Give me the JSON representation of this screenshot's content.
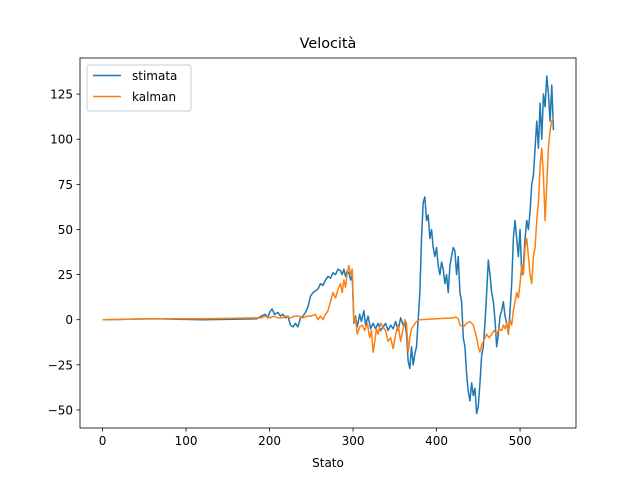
{
  "chart_data": {
    "type": "line",
    "title": "Velocità",
    "xlabel": "Stato",
    "ylabel": "",
    "xlim": [
      -27,
      567
    ],
    "ylim": [
      -60,
      145
    ],
    "xticks": [
      0,
      100,
      200,
      300,
      400,
      500
    ],
    "xtick_labels": [
      "0",
      "100",
      "200",
      "300",
      "400",
      "500"
    ],
    "yticks": [
      -50,
      -25,
      0,
      25,
      50,
      75,
      100,
      125
    ],
    "ytick_labels": [
      "−50",
      "−25",
      "0",
      "25",
      "50",
      "75",
      "100",
      "125"
    ],
    "grid": false,
    "legend_position": "top-left",
    "series": [
      {
        "name": "stimata",
        "color": "#1f77b4",
        "points": [
          [
            0,
            0
          ],
          [
            60,
            0.5
          ],
          [
            120,
            0
          ],
          [
            185,
            0.5
          ],
          [
            190,
            2
          ],
          [
            195,
            3
          ],
          [
            198,
            1
          ],
          [
            200,
            4
          ],
          [
            203,
            6
          ],
          [
            206,
            3
          ],
          [
            210,
            4
          ],
          [
            213,
            2
          ],
          [
            216,
            3
          ],
          [
            219,
            1
          ],
          [
            222,
            2
          ],
          [
            225,
            -3
          ],
          [
            228,
            -4
          ],
          [
            231,
            -2
          ],
          [
            234,
            -4
          ],
          [
            237,
            1
          ],
          [
            240,
            2
          ],
          [
            243,
            4
          ],
          [
            246,
            7
          ],
          [
            249,
            13
          ],
          [
            252,
            15
          ],
          [
            255,
            16
          ],
          [
            258,
            17
          ],
          [
            261,
            20
          ],
          [
            264,
            19
          ],
          [
            267,
            22
          ],
          [
            270,
            24
          ],
          [
            273,
            23
          ],
          [
            276,
            26
          ],
          [
            279,
            25
          ],
          [
            282,
            28
          ],
          [
            285,
            27
          ],
          [
            287,
            25
          ],
          [
            289,
            28
          ],
          [
            291,
            24
          ],
          [
            293,
            27
          ],
          [
            295,
            26
          ],
          [
            297,
            22
          ],
          [
            299,
            25
          ],
          [
            301,
            -2
          ],
          [
            303,
            2
          ],
          [
            305,
            -4
          ],
          [
            308,
            3
          ],
          [
            310,
            -1
          ],
          [
            313,
            5
          ],
          [
            315,
            -3
          ],
          [
            318,
            2
          ],
          [
            321,
            -5
          ],
          [
            324,
            -2
          ],
          [
            327,
            -5
          ],
          [
            330,
            -2
          ],
          [
            333,
            -6
          ],
          [
            336,
            -4
          ],
          [
            339,
            -2
          ],
          [
            342,
            -6
          ],
          [
            345,
            -3
          ],
          [
            348,
            -5
          ],
          [
            351,
            -1
          ],
          [
            354,
            -6
          ],
          [
            357,
            1
          ],
          [
            360,
            -3
          ],
          [
            362,
            -1
          ],
          [
            364,
            -8
          ],
          [
            366,
            -23
          ],
          [
            368,
            -27
          ],
          [
            370,
            -15
          ],
          [
            372,
            -25
          ],
          [
            374,
            -19
          ],
          [
            376,
            -15
          ],
          [
            378,
            0
          ],
          [
            380,
            15
          ],
          [
            382,
            45
          ],
          [
            384,
            65
          ],
          [
            386,
            68
          ],
          [
            388,
            55
          ],
          [
            390,
            58
          ],
          [
            392,
            45
          ],
          [
            394,
            50
          ],
          [
            396,
            40
          ],
          [
            398,
            35
          ],
          [
            400,
            40
          ],
          [
            402,
            30
          ],
          [
            404,
            25
          ],
          [
            406,
            32
          ],
          [
            408,
            28
          ],
          [
            410,
            20
          ],
          [
            412,
            25
          ],
          [
            414,
            15
          ],
          [
            416,
            30
          ],
          [
            418,
            35
          ],
          [
            420,
            40
          ],
          [
            422,
            38
          ],
          [
            424,
            25
          ],
          [
            426,
            35
          ],
          [
            428,
            15
          ],
          [
            430,
            10
          ],
          [
            432,
            -10
          ],
          [
            434,
            -15
          ],
          [
            436,
            -30
          ],
          [
            438,
            -40
          ],
          [
            440,
            -45
          ],
          [
            442,
            -35
          ],
          [
            444,
            -42
          ],
          [
            446,
            -38
          ],
          [
            448,
            -52
          ],
          [
            450,
            -48
          ],
          [
            452,
            -35
          ],
          [
            454,
            -20
          ],
          [
            456,
            -15
          ],
          [
            458,
            -2
          ],
          [
            460,
            15
          ],
          [
            462,
            33
          ],
          [
            464,
            25
          ],
          [
            466,
            15
          ],
          [
            468,
            10
          ],
          [
            470,
            0
          ],
          [
            472,
            -15
          ],
          [
            474,
            -8
          ],
          [
            476,
            2
          ],
          [
            478,
            5
          ],
          [
            480,
            10
          ],
          [
            482,
            2
          ],
          [
            484,
            -2
          ],
          [
            486,
            -8
          ],
          [
            488,
            5
          ],
          [
            490,
            20
          ],
          [
            492,
            45
          ],
          [
            494,
            55
          ],
          [
            496,
            45
          ],
          [
            498,
            35
          ],
          [
            500,
            50
          ],
          [
            502,
            25
          ],
          [
            504,
            30
          ],
          [
            506,
            45
          ],
          [
            508,
            55
          ],
          [
            510,
            50
          ],
          [
            512,
            60
          ],
          [
            514,
            75
          ],
          [
            516,
            80
          ],
          [
            518,
            95
          ],
          [
            520,
            110
          ],
          [
            522,
            95
          ],
          [
            524,
            120
          ],
          [
            526,
            100
          ],
          [
            528,
            125
          ],
          [
            530,
            118
          ],
          [
            532,
            135
          ],
          [
            534,
            125
          ],
          [
            536,
            110
          ],
          [
            538,
            130
          ],
          [
            540,
            105
          ]
        ]
      },
      {
        "name": "kalman",
        "color": "#ff7f0e",
        "points": [
          [
            0,
            0
          ],
          [
            60,
            0.5
          ],
          [
            120,
            0.5
          ],
          [
            185,
            1
          ],
          [
            190,
            1
          ],
          [
            195,
            2
          ],
          [
            200,
            1
          ],
          [
            205,
            2
          ],
          [
            210,
            1
          ],
          [
            215,
            1
          ],
          [
            220,
            2
          ],
          [
            225,
            1
          ],
          [
            230,
            2
          ],
          [
            235,
            2
          ],
          [
            240,
            1
          ],
          [
            245,
            2
          ],
          [
            250,
            2
          ],
          [
            255,
            3
          ],
          [
            258,
            0
          ],
          [
            261,
            2
          ],
          [
            264,
            0
          ],
          [
            267,
            3
          ],
          [
            270,
            5
          ],
          [
            273,
            10
          ],
          [
            276,
            15
          ],
          [
            279,
            12
          ],
          [
            282,
            17
          ],
          [
            285,
            20
          ],
          [
            287,
            15
          ],
          [
            289,
            22
          ],
          [
            291,
            18
          ],
          [
            293,
            26
          ],
          [
            295,
            30
          ],
          [
            297,
            25
          ],
          [
            299,
            28
          ],
          [
            301,
            -1
          ],
          [
            303,
            1
          ],
          [
            305,
            -8
          ],
          [
            308,
            -4
          ],
          [
            311,
            -3
          ],
          [
            314,
            -6
          ],
          [
            317,
            -2
          ],
          [
            320,
            -10
          ],
          [
            322,
            -6
          ],
          [
            324,
            -18
          ],
          [
            326,
            -12
          ],
          [
            328,
            -5
          ],
          [
            330,
            -8
          ],
          [
            333,
            -2
          ],
          [
            336,
            -4
          ],
          [
            339,
            -6
          ],
          [
            342,
            -12
          ],
          [
            345,
            -10
          ],
          [
            348,
            -16
          ],
          [
            351,
            -8
          ],
          [
            354,
            -3
          ],
          [
            357,
            -12
          ],
          [
            360,
            -5
          ],
          [
            362,
            0
          ],
          [
            364,
            -2
          ],
          [
            366,
            -18
          ],
          [
            368,
            -10
          ],
          [
            370,
            -5
          ],
          [
            373,
            -3
          ],
          [
            376,
            -1
          ],
          [
            380,
            0
          ],
          [
            400,
            0.5
          ],
          [
            420,
            1
          ],
          [
            423,
            1.5
          ],
          [
            426,
            0.5
          ],
          [
            428,
            -3
          ],
          [
            432,
            -4
          ],
          [
            436,
            -2
          ],
          [
            440,
            -1
          ],
          [
            444,
            -3
          ],
          [
            448,
            -10
          ],
          [
            450,
            -15
          ],
          [
            452,
            -18
          ],
          [
            454,
            -14
          ],
          [
            456,
            -12
          ],
          [
            458,
            -10
          ],
          [
            460,
            -8
          ],
          [
            463,
            -10
          ],
          [
            466,
            -8
          ],
          [
            469,
            -6
          ],
          [
            472,
            -8
          ],
          [
            475,
            -5
          ],
          [
            478,
            -6
          ],
          [
            480,
            -3
          ],
          [
            482,
            -5
          ],
          [
            484,
            -2
          ],
          [
            486,
            -8
          ],
          [
            488,
            0
          ],
          [
            490,
            -3
          ],
          [
            492,
            5
          ],
          [
            494,
            10
          ],
          [
            496,
            15
          ],
          [
            498,
            12
          ],
          [
            500,
            20
          ],
          [
            502,
            30
          ],
          [
            504,
            25
          ],
          [
            506,
            40
          ],
          [
            508,
            45
          ],
          [
            510,
            35
          ],
          [
            512,
            25
          ],
          [
            514,
            20
          ],
          [
            516,
            35
          ],
          [
            518,
            40
          ],
          [
            520,
            55
          ],
          [
            522,
            65
          ],
          [
            524,
            85
          ],
          [
            526,
            95
          ],
          [
            528,
            80
          ],
          [
            530,
            55
          ],
          [
            532,
            75
          ],
          [
            534,
            95
          ],
          [
            536,
            105
          ],
          [
            538,
            110
          ],
          [
            540,
            112
          ]
        ]
      }
    ]
  }
}
